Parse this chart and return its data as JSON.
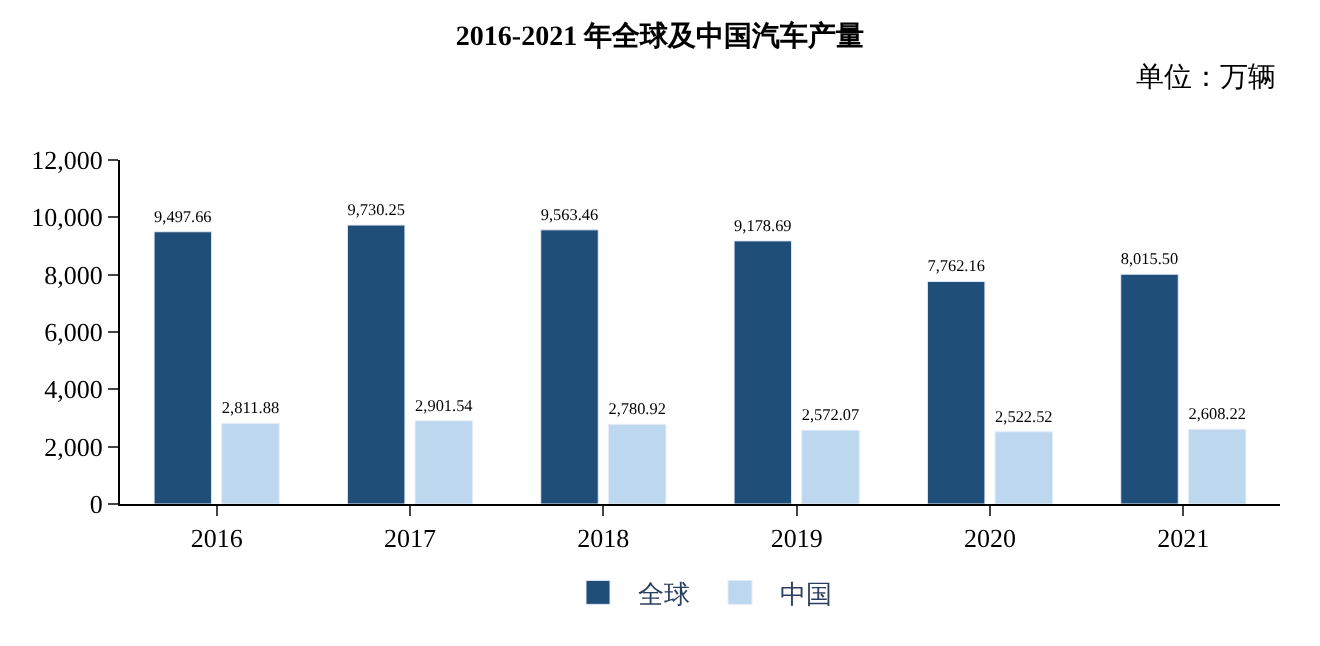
{
  "chart_data": {
    "type": "bar",
    "title": "2016-2021 年全球及中国汽车产量",
    "annotations": [
      "单位：万辆"
    ],
    "categories": [
      "2016",
      "2017",
      "2018",
      "2019",
      "2020",
      "2021"
    ],
    "series": [
      {
        "name": "全球",
        "color": "#1f4e79",
        "values": [
          9497.66,
          9730.25,
          9563.46,
          9178.69,
          7762.16,
          8015.5
        ],
        "value_labels": [
          "9,497.66",
          "9,730.25",
          "9,563.46",
          "9,178.69",
          "7,762.16",
          "8,015.50"
        ]
      },
      {
        "name": "中国",
        "color": "#bdd7ee",
        "values": [
          2811.88,
          2901.54,
          2780.92,
          2572.07,
          2522.52,
          2608.22
        ],
        "value_labels": [
          "2,811.88",
          "2,901.54",
          "2,780.92",
          "2,572.07",
          "2,522.52",
          "2,608.22"
        ]
      }
    ],
    "ylim": [
      0,
      12000
    ],
    "yticks": [
      0,
      {
        "value": 2000,
        "label": "2,000"
      },
      {
        "value": 4000,
        "label": "4,000"
      },
      {
        "value": 6000,
        "label": "6,000"
      },
      {
        "value": 8000,
        "label": "8,000"
      },
      {
        "value": 10000,
        "label": "10,000"
      },
      {
        "value": 12000,
        "label": "12,000"
      }
    ],
    "legend": "bottom"
  }
}
